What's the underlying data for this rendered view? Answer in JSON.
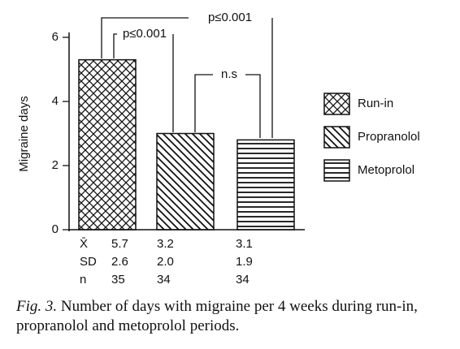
{
  "chart_data": {
    "type": "bar",
    "y_label": "Migraine days",
    "categories": [
      "Run-in",
      "Propranolol",
      "Metoprolol"
    ],
    "values": [
      5.3,
      3.0,
      2.8
    ],
    "patterns": [
      "crosshatch",
      "diagonal",
      "horizontal"
    ],
    "color": "#111111",
    "ylim": [
      0,
      6
    ],
    "yticks": [
      0,
      2,
      4,
      6
    ],
    "annotations": [
      "p≤0.001",
      "p≤0.001",
      "n.s"
    ],
    "stats": [
      {
        "label": "X̄",
        "values": [
          "5.7",
          "3.2",
          "3.1"
        ]
      },
      {
        "label": "SD",
        "values": [
          "2.6",
          "2.0",
          "1.9"
        ]
      },
      {
        "label": "n",
        "values": [
          "35",
          "34",
          "34"
        ]
      }
    ],
    "caption_label": "Fig. 3.",
    "caption_text": "Number of days with migraine per 4 weeks during run-in, propranolol and metoprolol periods."
  }
}
